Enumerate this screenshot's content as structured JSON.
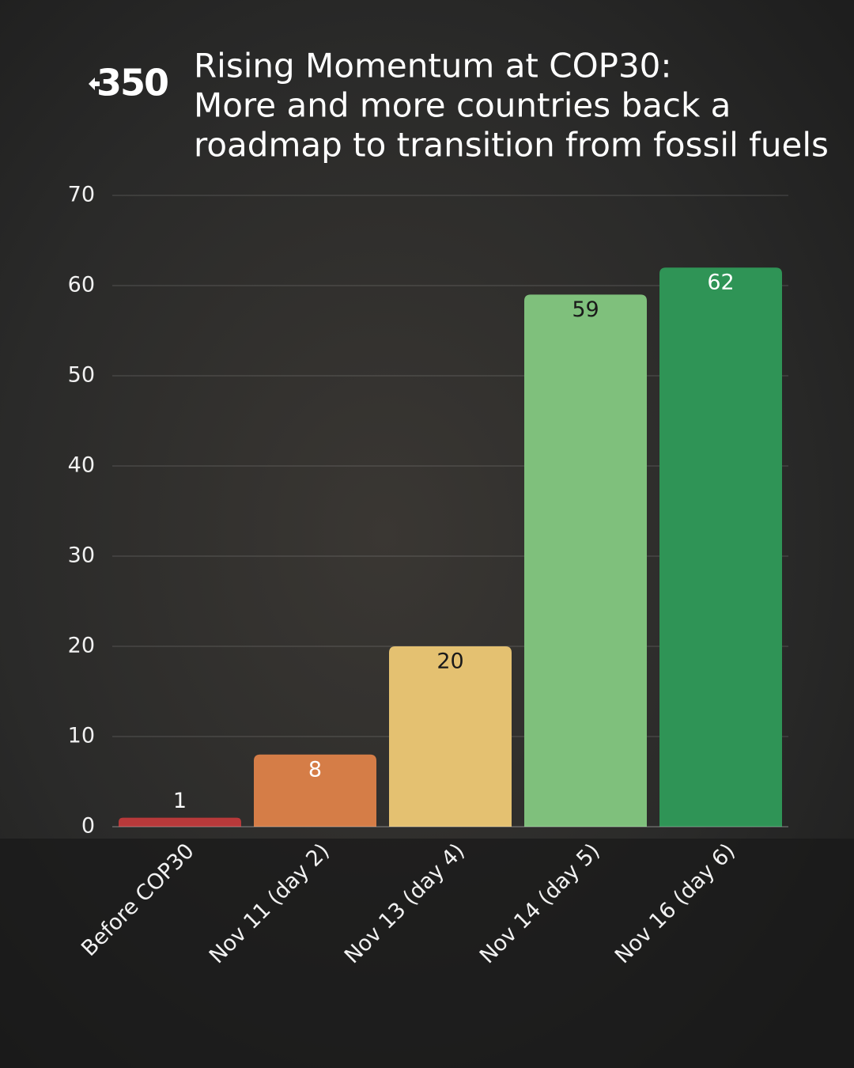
{
  "chart_data": {
    "type": "bar",
    "logo": "350",
    "title": [
      "Rising Momentum at COP30:",
      "More and more countries back a",
      "roadmap to transition from fossil fuels"
    ],
    "categories": [
      "Before COP30",
      "Nov 11 (day 2)",
      "Nov 13 (day 4)",
      "Nov 14 (day 5)",
      "Nov 16 (day 6)"
    ],
    "values": [
      1,
      8,
      20,
      59,
      62
    ],
    "colors": [
      "#b8393a",
      "#d57d47",
      "#e4c171",
      "#7fc07c",
      "#2f9456"
    ],
    "ylim": [
      0,
      70
    ],
    "yticks": [
      0,
      10,
      20,
      30,
      40,
      50,
      60,
      70
    ],
    "grid": true
  }
}
